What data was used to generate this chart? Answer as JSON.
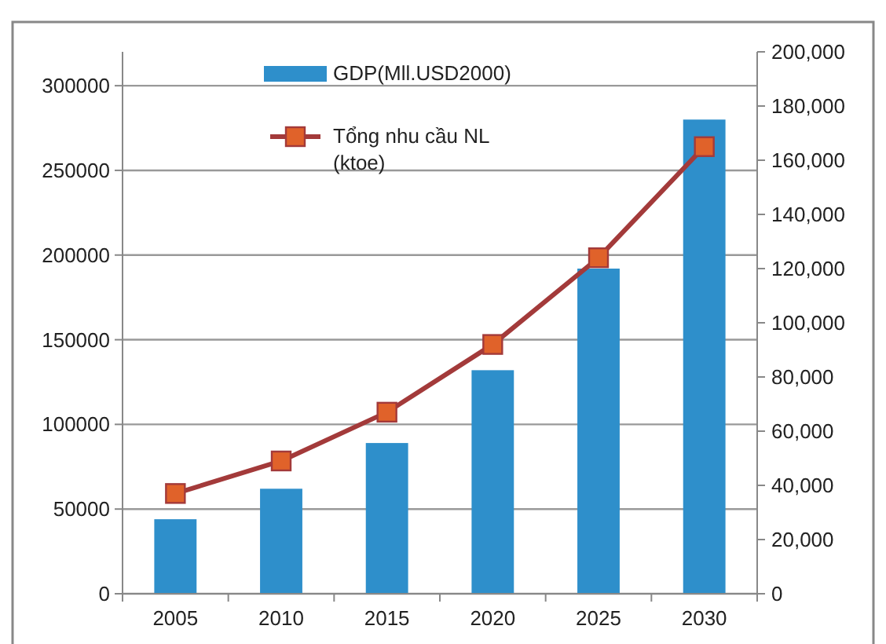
{
  "chart_data": {
    "type": "bar",
    "categories": [
      "2005",
      "2010",
      "2015",
      "2020",
      "2025",
      "2030"
    ],
    "series": [
      {
        "name": "GDP(Mll.USD2000)",
        "color": "#2e8fcb",
        "values": [
          44000,
          62000,
          89000,
          132000,
          192000,
          280000
        ]
      },
      {
        "name": "Tổng nhu cầu NL (ktoe)",
        "type": "line",
        "axis": "y2",
        "color": "#a33a3a",
        "marker": "square",
        "values": [
          37000,
          49000,
          67000,
          92000,
          124000,
          165000
        ]
      }
    ],
    "ylim": [
      0,
      320000
    ],
    "yticks": [
      0,
      50000,
      100000,
      150000,
      200000,
      250000,
      300000
    ],
    "y2lim": [
      0,
      200000
    ],
    "y2ticks": [
      {
        "value": 0,
        "label": "0"
      },
      {
        "value": 20000,
        "label": "20,000"
      },
      {
        "value": 40000,
        "label": "40,000"
      },
      {
        "value": 60000,
        "label": "60,000"
      },
      {
        "value": 80000,
        "label": "80,000"
      },
      {
        "value": 100000,
        "label": "100,000"
      },
      {
        "value": 120000,
        "label": "120,000"
      },
      {
        "value": 140000,
        "label": "140,000"
      },
      {
        "value": 160000,
        "label": "160,000"
      },
      {
        "value": 180000,
        "label": "180,000"
      },
      {
        "value": 200000,
        "label": "200,000"
      }
    ],
    "grid": "y",
    "legend": "top"
  }
}
